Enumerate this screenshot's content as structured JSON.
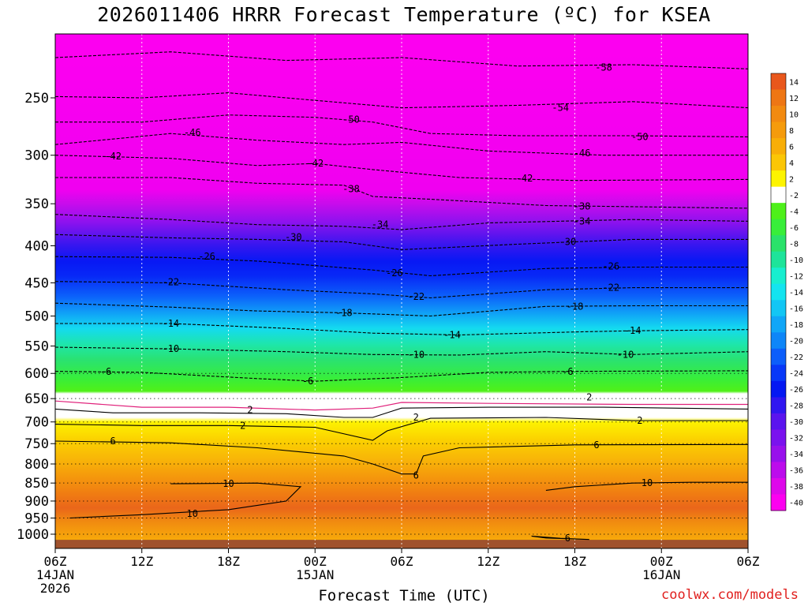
{
  "title": "2026011406 HRRR Forecast Temperature (ºC) for KSEA",
  "xaxis_title": "Forecast Time (UTC)",
  "credit": "coolwx.com/models",
  "y_ticks": [
    {
      "p": 250,
      "label": "250"
    },
    {
      "p": 300,
      "label": "300"
    },
    {
      "p": 350,
      "label": "350"
    },
    {
      "p": 400,
      "label": "400"
    },
    {
      "p": 450,
      "label": "450"
    },
    {
      "p": 500,
      "label": "500"
    },
    {
      "p": 550,
      "label": "550"
    },
    {
      "p": 600,
      "label": "600"
    },
    {
      "p": 650,
      "label": "650"
    },
    {
      "p": 700,
      "label": "700"
    },
    {
      "p": 750,
      "label": "750"
    },
    {
      "p": 800,
      "label": "800"
    },
    {
      "p": 850,
      "label": "850"
    },
    {
      "p": 900,
      "label": "900"
    },
    {
      "p": 950,
      "label": "950"
    },
    {
      "p": 1000,
      "label": "1000"
    }
  ],
  "x_ticks": [
    {
      "h": 0,
      "lines": [
        "06Z",
        "14JAN",
        "2026"
      ]
    },
    {
      "h": 6,
      "lines": [
        "12Z"
      ]
    },
    {
      "h": 12,
      "lines": [
        "18Z"
      ]
    },
    {
      "h": 18,
      "lines": [
        "00Z",
        "15JAN"
      ]
    },
    {
      "h": 24,
      "lines": [
        "06Z"
      ]
    },
    {
      "h": 30,
      "lines": [
        "12Z"
      ]
    },
    {
      "h": 36,
      "lines": [
        "18Z"
      ]
    },
    {
      "h": 42,
      "lines": [
        "00Z",
        "16JAN"
      ]
    },
    {
      "h": 48,
      "lines": [
        "06Z"
      ]
    }
  ],
  "colorbar": {
    "labels": [
      "14",
      "12",
      "10",
      "8",
      "6",
      "4",
      "2",
      "-2",
      "-4",
      "-6",
      "-8",
      "-10",
      "-12",
      "-14",
      "-16",
      "-18",
      "-20",
      "-22",
      "-24",
      "-26",
      "-28",
      "-30",
      "-32",
      "-34",
      "-36",
      "-38",
      "-40"
    ],
    "colors": [
      "#e9571c",
      "#ee7614",
      "#f28a10",
      "#f59b0c",
      "#f8ae08",
      "#fbc606",
      "#fdf400",
      "#ffffff",
      "#4ef01a",
      "#38ee3a",
      "#2ae26a",
      "#1ee49a",
      "#18eecf",
      "#14e4ef",
      "#12c6f4",
      "#10a6f7",
      "#0e86f8",
      "#0c5efa",
      "#0838f8",
      "#0418f2",
      "#3016f0",
      "#5a14ee",
      "#7a12ee",
      "#9810ec",
      "#bc0cec",
      "#de08ea",
      "#fc00f0"
    ]
  },
  "chart_data": {
    "type": "heatmap",
    "title": "2026011406 HRRR Forecast Temperature (ºC) for KSEA",
    "xlabel": "Forecast Time (UTC)",
    "ylabel": "",
    "x_range_hours": [
      0,
      48
    ],
    "x_start": "2026-01-14 06Z",
    "x_end": "2026-01-16 06Z",
    "y_range_hpa": [
      200,
      1050
    ],
    "y_scale": "log-pressure",
    "grid": true,
    "colorbar_range_c": [
      -40,
      14
    ],
    "contour_labels": [
      {
        "h": 38,
        "p": 227,
        "value": -58
      },
      {
        "h": 35,
        "p": 258,
        "value": -54
      },
      {
        "h": 20.5,
        "p": 268,
        "value": -50
      },
      {
        "h": 40.5,
        "p": 283,
        "value": -50
      },
      {
        "h": 9.5,
        "p": 279,
        "value": -46
      },
      {
        "h": 36.5,
        "p": 298,
        "value": -46
      },
      {
        "h": 4,
        "p": 301,
        "value": -42
      },
      {
        "h": 18,
        "p": 308,
        "value": -42
      },
      {
        "h": 32.5,
        "p": 323,
        "value": -42
      },
      {
        "h": 20.5,
        "p": 334,
        "value": -38
      },
      {
        "h": 36.5,
        "p": 353,
        "value": -38
      },
      {
        "h": 22.5,
        "p": 374,
        "value": -34
      },
      {
        "h": 36.5,
        "p": 370,
        "value": -34
      },
      {
        "h": 16.5,
        "p": 389,
        "value": -30
      },
      {
        "h": 35.5,
        "p": 395,
        "value": -30
      },
      {
        "h": 10.5,
        "p": 414,
        "value": -26
      },
      {
        "h": 23.5,
        "p": 436,
        "value": -26
      },
      {
        "h": 38.5,
        "p": 427,
        "value": -26
      },
      {
        "h": 8,
        "p": 449,
        "value": -22
      },
      {
        "h": 25,
        "p": 470,
        "value": -22
      },
      {
        "h": 38.5,
        "p": 457,
        "value": -22
      },
      {
        "h": 20,
        "p": 495,
        "value": -18
      },
      {
        "h": 36,
        "p": 485,
        "value": -18
      },
      {
        "h": 8,
        "p": 512,
        "value": -14
      },
      {
        "h": 27.5,
        "p": 531,
        "value": -14
      },
      {
        "h": 40,
        "p": 524,
        "value": -14
      },
      {
        "h": 8,
        "p": 555,
        "value": -10
      },
      {
        "h": 25,
        "p": 565,
        "value": -10
      },
      {
        "h": 39.5,
        "p": 565,
        "value": -10
      },
      {
        "h": 3.5,
        "p": 597,
        "value": -6
      },
      {
        "h": 17.5,
        "p": 615,
        "value": -6
      },
      {
        "h": 35.5,
        "p": 597,
        "value": -6
      },
      {
        "h": 13.5,
        "p": 674,
        "value": 2
      },
      {
        "h": 13,
        "p": 708,
        "value": 2
      },
      {
        "h": 25,
        "p": 690,
        "value": 2
      },
      {
        "h": 37,
        "p": 647,
        "value": 2
      },
      {
        "h": 40.5,
        "p": 697,
        "value": 2
      },
      {
        "h": 4,
        "p": 744,
        "value": 6
      },
      {
        "h": 25,
        "p": 830,
        "value": 6
      },
      {
        "h": 37.5,
        "p": 753,
        "value": 6
      },
      {
        "h": 35.5,
        "p": 1013,
        "value": 6
      },
      {
        "h": 12,
        "p": 852,
        "value": 10
      },
      {
        "h": 9.5,
        "p": 937,
        "value": 10
      },
      {
        "h": 41,
        "p": 850,
        "value": 10
      }
    ]
  }
}
